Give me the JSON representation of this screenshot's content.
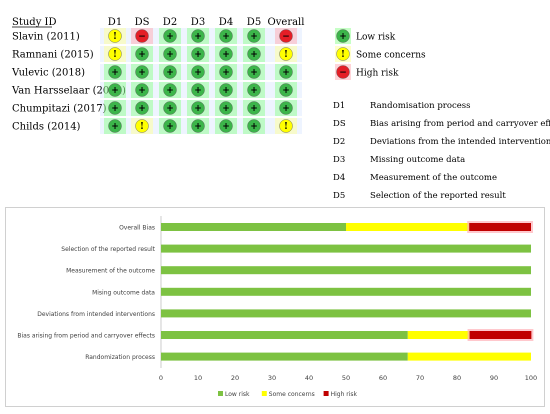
{
  "traffic_light": {
    "study_header": "Study ID",
    "columns": [
      "D1",
      "DS",
      "D2",
      "D3",
      "D4",
      "D5",
      "Overall"
    ],
    "studies": [
      {
        "name": "Slavin (2011)",
        "ratings": [
          "some",
          "high",
          "low",
          "low",
          "low",
          "low",
          "high"
        ]
      },
      {
        "name": "Ramnani (2015)",
        "ratings": [
          "some",
          "low",
          "low",
          "low",
          "low",
          "low",
          "some"
        ]
      },
      {
        "name": "Vulevic (2018)",
        "ratings": [
          "low",
          "low",
          "low",
          "low",
          "low",
          "low",
          "low"
        ]
      },
      {
        "name": "Van Harsselaar (2024)",
        "ratings": [
          "low",
          "low",
          "low",
          "low",
          "low",
          "low",
          "low"
        ]
      },
      {
        "name": "Chumpitazi (2017)",
        "ratings": [
          "low",
          "low",
          "low",
          "low",
          "low",
          "low",
          "low"
        ]
      },
      {
        "name": "Childs (2014)",
        "ratings": [
          "low",
          "some",
          "low",
          "low",
          "low",
          "low",
          "some"
        ]
      }
    ],
    "symbols": {
      "low": "+",
      "some": "!",
      "high": "−"
    },
    "legend": [
      {
        "key": "low",
        "label": "Low risk"
      },
      {
        "key": "some",
        "label": "Some concerns"
      },
      {
        "key": "high",
        "label": "High risk"
      }
    ],
    "domains": [
      {
        "code": "D1",
        "label": "Randomisation process"
      },
      {
        "code": "DS",
        "label": "Bias arising from period and carryover effects"
      },
      {
        "code": "D2",
        "label": "Deviations from the intended interventions"
      },
      {
        "code": "D3",
        "label": "Missing outcome data"
      },
      {
        "code": "D4",
        "label": "Measurement of the outcome"
      },
      {
        "code": "D5",
        "label": "Selection of the reported result"
      }
    ]
  },
  "colors": {
    "low": "#7dc242",
    "some": "#ffff00",
    "high": "#c00000",
    "low_circle": "#3cb54a",
    "high_circle": "#e41e26",
    "halo_low": "#98ff98",
    "halo_some": "#ffffa0",
    "halo_high": "#ffb0b8",
    "row_shade": "#eef4ff"
  },
  "chart_data": {
    "type": "bar",
    "orientation": "horizontal",
    "stacked": true,
    "categories": [
      "Overall Bias",
      "Selection of the reported result",
      "Measurement of the outcome",
      "Mising outcome data",
      "Deviations from intended interventions",
      "Bias arising from period and carryover effects",
      "Randomization process"
    ],
    "series": [
      {
        "name": "Low risk",
        "color_key": "low",
        "values": [
          50,
          100,
          100,
          100,
          100,
          66.7,
          66.7
        ]
      },
      {
        "name": "Some concerns",
        "color_key": "some",
        "values": [
          33.3,
          0,
          0,
          0,
          0,
          16.7,
          33.3
        ]
      },
      {
        "name": "High risk",
        "color_key": "high",
        "values": [
          16.7,
          0,
          0,
          0,
          0,
          16.7,
          0
        ]
      }
    ],
    "xlim": [
      0,
      100
    ],
    "xticks": [
      0,
      10,
      20,
      30,
      40,
      50,
      60,
      70,
      80,
      90,
      100
    ],
    "legend_position": "bottom-center",
    "grid": false
  }
}
